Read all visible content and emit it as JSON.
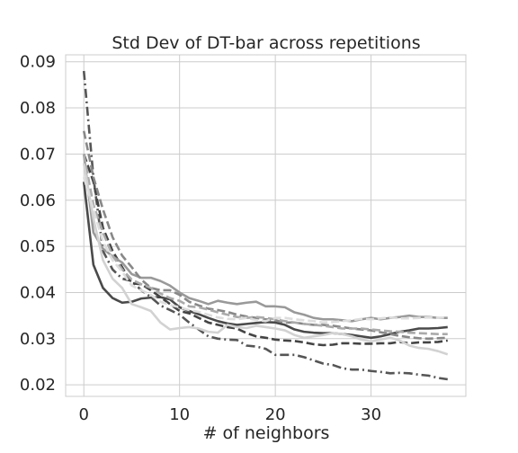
{
  "chart_data": {
    "type": "line",
    "title": "Std Dev of DT-bar across repetitions",
    "xlabel": "# of neighbors",
    "ylabel": "",
    "xlim": [
      -1.9,
      39.9
    ],
    "ylim": [
      0.0175,
      0.0915
    ],
    "xticks": [
      0,
      10,
      20,
      30
    ],
    "yticks": [
      0.02,
      0.03,
      0.04,
      0.05,
      0.06,
      0.07,
      0.08,
      0.09
    ],
    "ytick_labels": [
      "0.02",
      "0.03",
      "0.04",
      "0.05",
      "0.06",
      "0.07",
      "0.08",
      "0.09"
    ],
    "xtick_labels": [
      "0",
      "10",
      "20",
      "30"
    ],
    "grid": true,
    "legend": "none",
    "x": [
      0,
      1,
      2,
      3,
      4,
      5,
      6,
      7,
      8,
      9,
      10,
      11,
      12,
      13,
      14,
      15,
      16,
      17,
      18,
      19,
      20,
      21,
      22,
      23,
      24,
      25,
      26,
      27,
      28,
      29,
      30,
      31,
      32,
      33,
      34,
      35,
      36,
      37,
      38
    ],
    "series": [
      {
        "color": "#4a4a4a",
        "dash": "solid",
        "values": [
          0.064,
          0.046,
          0.041,
          0.0388,
          0.0378,
          0.038,
          0.0387,
          0.0389,
          0.039,
          0.0385,
          0.0368,
          0.036,
          0.0353,
          0.0345,
          0.0338,
          0.0333,
          0.033,
          0.0332,
          0.0334,
          0.0336,
          0.0335,
          0.033,
          0.032,
          0.0315,
          0.0313,
          0.0312,
          0.0312,
          0.031,
          0.0308,
          0.0305,
          0.0302,
          0.0305,
          0.031,
          0.0315,
          0.0318,
          0.0322,
          0.0322,
          0.0323,
          0.0325
        ]
      },
      {
        "color": "#555555",
        "dash": "dashdot",
        "values": [
          0.088,
          0.065,
          0.049,
          0.045,
          0.043,
          0.0425,
          0.0405,
          0.039,
          0.0372,
          0.0362,
          0.0352,
          0.0335,
          0.032,
          0.0305,
          0.03,
          0.0298,
          0.0297,
          0.0285,
          0.0283,
          0.0278,
          0.0265,
          0.0265,
          0.0265,
          0.026,
          0.0253,
          0.0246,
          0.0243,
          0.0236,
          0.0233,
          0.0233,
          0.023,
          0.0228,
          0.0225,
          0.0226,
          0.0225,
          0.0222,
          0.022,
          0.0215,
          0.0212
        ]
      },
      {
        "color": "#444444",
        "dash": "dashed",
        "values": [
          0.07,
          0.064,
          0.054,
          0.049,
          0.0455,
          0.042,
          0.0418,
          0.0405,
          0.039,
          0.0375,
          0.036,
          0.0355,
          0.0345,
          0.0335,
          0.033,
          0.0325,
          0.0322,
          0.0312,
          0.0305,
          0.0302,
          0.0298,
          0.0296,
          0.0295,
          0.0292,
          0.0288,
          0.0286,
          0.0287,
          0.029,
          0.029,
          0.0289,
          0.0289,
          0.029,
          0.029,
          0.0293,
          0.029,
          0.0292,
          0.0292,
          0.0293,
          0.0296
        ]
      },
      {
        "color": "#999999",
        "dash": "solid",
        "values": [
          0.07,
          0.053,
          0.0495,
          0.0478,
          0.0465,
          0.044,
          0.0432,
          0.0432,
          0.0425,
          0.0415,
          0.04,
          0.0388,
          0.0382,
          0.0375,
          0.0382,
          0.0378,
          0.0375,
          0.0378,
          0.038,
          0.037,
          0.037,
          0.0368,
          0.0357,
          0.0352,
          0.0345,
          0.0342,
          0.0342,
          0.034,
          0.0338,
          0.0342,
          0.0345,
          0.0342,
          0.0345,
          0.0347,
          0.035,
          0.0347,
          0.0347,
          0.0345,
          0.0345
        ]
      },
      {
        "color": "#888888",
        "dash": "dashed",
        "values": [
          0.075,
          0.065,
          0.058,
          0.052,
          0.048,
          0.0455,
          0.0428,
          0.041,
          0.0405,
          0.0405,
          0.0395,
          0.038,
          0.0372,
          0.0365,
          0.0362,
          0.0358,
          0.0352,
          0.0348,
          0.0345,
          0.0342,
          0.034,
          0.0335,
          0.0335,
          0.0332,
          0.033,
          0.033,
          0.0328,
          0.0325,
          0.0322,
          0.032,
          0.0318,
          0.0314,
          0.031,
          0.0306,
          0.0303,
          0.0301,
          0.03,
          0.0301,
          0.0302
        ]
      },
      {
        "color": "#aaaaaa",
        "dash": "dashed",
        "values": [
          0.07,
          0.059,
          0.053,
          0.048,
          0.045,
          0.0428,
          0.0418,
          0.041,
          0.0398,
          0.0388,
          0.0382,
          0.037,
          0.0368,
          0.0363,
          0.0357,
          0.0352,
          0.0347,
          0.0345,
          0.0347,
          0.0345,
          0.0342,
          0.0338,
          0.0335,
          0.0332,
          0.033,
          0.0328,
          0.0325,
          0.0322,
          0.0322,
          0.0322,
          0.032,
          0.0318,
          0.0316,
          0.0315,
          0.0313,
          0.0312,
          0.0311,
          0.031,
          0.031
        ]
      },
      {
        "color": "#d2d2d2",
        "dash": "solid",
        "values": [
          0.068,
          0.056,
          0.047,
          0.043,
          0.041,
          0.0375,
          0.0368,
          0.036,
          0.0335,
          0.032,
          0.0323,
          0.0325,
          0.0322,
          0.0315,
          0.0313,
          0.033,
          0.0325,
          0.0323,
          0.0328,
          0.0325,
          0.0322,
          0.0318,
          0.0308,
          0.0302,
          0.0305,
          0.0308,
          0.0312,
          0.031,
          0.0305,
          0.0298,
          0.0294,
          0.0298,
          0.0302,
          0.0296,
          0.0285,
          0.028,
          0.0278,
          0.0273,
          0.0266
        ]
      },
      {
        "color": "#dddddd",
        "dash": "dashed",
        "values": [
          0.065,
          0.058,
          0.051,
          0.047,
          0.0445,
          0.0415,
          0.0405,
          0.0395,
          0.038,
          0.0373,
          0.0368,
          0.0362,
          0.0358,
          0.0352,
          0.0346,
          0.0343,
          0.0342,
          0.0345,
          0.034,
          0.0338,
          0.0345,
          0.0345,
          0.0342,
          0.034,
          0.0338,
          0.0335,
          0.0336,
          0.0338,
          0.034,
          0.0343,
          0.0342,
          0.0344,
          0.0346,
          0.0344,
          0.0344,
          0.0345,
          0.0346,
          0.0345,
          0.0346
        ]
      }
    ]
  }
}
